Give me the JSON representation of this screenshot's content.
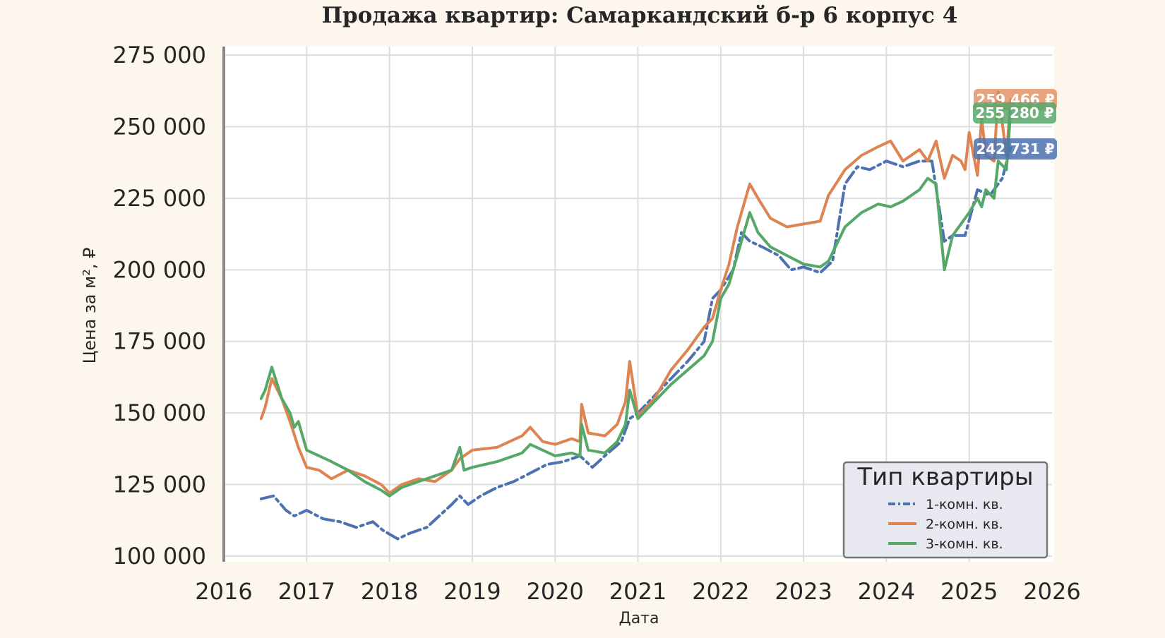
{
  "chart_data": {
    "type": "line",
    "title": "Продажа квартир: Самаркандский б-р 6 корпус 4",
    "xlabel": "Дата",
    "ylabel": "Цена за м², ₽",
    "xlim": [
      2016,
      2026
    ],
    "ylim": [
      98000,
      278000
    ],
    "x_ticks": [
      "2016",
      "2017",
      "2018",
      "2019",
      "2020",
      "2021",
      "2022",
      "2023",
      "2024",
      "2025",
      "2026"
    ],
    "y_ticks": [
      "100 000",
      "125 000",
      "150 000",
      "175 000",
      "200 000",
      "225 000",
      "250 000",
      "275 000"
    ],
    "y_tick_values": [
      100000,
      125000,
      150000,
      175000,
      200000,
      225000,
      250000,
      275000
    ],
    "grid": true,
    "legend": {
      "title": "Тип квартиры",
      "placement": "bottom-right",
      "entries": [
        "1-комн. кв.",
        "2-комн. кв.",
        "3-комн. кв."
      ]
    },
    "series": [
      {
        "name": "1-комн. кв.",
        "color": "#4c72b0",
        "style": "dashdot",
        "end_label": "242 731 ₽",
        "x": [
          2016.45,
          2016.6,
          2016.75,
          2016.85,
          2017.0,
          2017.2,
          2017.4,
          2017.6,
          2017.8,
          2017.92,
          2018.1,
          2018.25,
          2018.45,
          2018.6,
          2018.75,
          2018.85,
          2018.95,
          2019.1,
          2019.3,
          2019.5,
          2019.7,
          2019.9,
          2020.1,
          2020.3,
          2020.45,
          2020.6,
          2020.8,
          2020.9,
          2021.0,
          2021.2,
          2021.4,
          2021.6,
          2021.8,
          2021.9,
          2022.0,
          2022.15,
          2022.25,
          2022.35,
          2022.5,
          2022.7,
          2022.85,
          2023.0,
          2023.2,
          2023.35,
          2023.5,
          2023.65,
          2023.8,
          2024.0,
          2024.2,
          2024.4,
          2024.55,
          2024.7,
          2024.8,
          2024.95,
          2025.1,
          2025.25,
          2025.4,
          2025.5
        ],
        "y": [
          120000,
          121000,
          116000,
          114000,
          116000,
          113000,
          112000,
          110000,
          112000,
          109000,
          106000,
          108000,
          110000,
          114000,
          118000,
          121000,
          118000,
          121000,
          124000,
          126000,
          129000,
          132000,
          133000,
          135000,
          131000,
          135000,
          140000,
          148000,
          150000,
          156000,
          162000,
          168000,
          175000,
          190000,
          193000,
          200000,
          213000,
          210000,
          208000,
          205000,
          200000,
          201000,
          199000,
          203000,
          230000,
          236000,
          235000,
          238000,
          236000,
          238000,
          238000,
          210000,
          212000,
          212000,
          228000,
          226000,
          232000,
          242731
        ]
      },
      {
        "name": "2-комн. кв.",
        "color": "#dd8452",
        "style": "solid",
        "end_label": "259 466 ₽",
        "x": [
          2016.45,
          2016.5,
          2016.58,
          2016.7,
          2016.8,
          2016.9,
          2017.0,
          2017.15,
          2017.3,
          2017.5,
          2017.7,
          2017.9,
          2018.0,
          2018.15,
          2018.35,
          2018.55,
          2018.75,
          2018.85,
          2019.0,
          2019.3,
          2019.6,
          2019.7,
          2019.85,
          2020.0,
          2020.2,
          2020.3,
          2020.32,
          2020.4,
          2020.6,
          2020.75,
          2020.85,
          2020.9,
          2021.0,
          2021.2,
          2021.4,
          2021.6,
          2021.8,
          2021.9,
          2022.0,
          2022.1,
          2022.2,
          2022.35,
          2022.45,
          2022.6,
          2022.8,
          2023.0,
          2023.2,
          2023.3,
          2023.5,
          2023.7,
          2023.9,
          2024.05,
          2024.2,
          2024.4,
          2024.5,
          2024.6,
          2024.7,
          2024.8,
          2024.9,
          2024.95,
          2025.0,
          2025.1,
          2025.15,
          2025.2,
          2025.3,
          2025.35,
          2025.45,
          2025.5
        ],
        "y": [
          148000,
          152000,
          162000,
          155000,
          147000,
          138000,
          131000,
          130000,
          127000,
          130000,
          128000,
          125000,
          122000,
          125000,
          127000,
          126000,
          130000,
          134000,
          137000,
          138000,
          142000,
          145000,
          140000,
          139000,
          141000,
          140000,
          153000,
          143000,
          142000,
          146000,
          154000,
          168000,
          149000,
          155000,
          165000,
          172000,
          180000,
          183000,
          193000,
          202000,
          215000,
          230000,
          225000,
          218000,
          215000,
          216000,
          217000,
          226000,
          235000,
          240000,
          243000,
          245000,
          238000,
          242000,
          238000,
          245000,
          232000,
          240000,
          238000,
          235000,
          248000,
          233000,
          253000,
          240000,
          238000,
          262000,
          240000,
          259466
        ]
      },
      {
        "name": "3-комн. кв.",
        "color": "#55a868",
        "style": "solid",
        "end_label": "255 280 ₽",
        "x": [
          2016.45,
          2016.5,
          2016.58,
          2016.7,
          2016.8,
          2016.85,
          2016.9,
          2017.0,
          2017.15,
          2017.3,
          2017.5,
          2017.7,
          2017.9,
          2018.0,
          2018.15,
          2018.35,
          2018.55,
          2018.75,
          2018.85,
          2018.9,
          2019.0,
          2019.3,
          2019.6,
          2019.7,
          2019.85,
          2020.0,
          2020.2,
          2020.3,
          2020.32,
          2020.4,
          2020.6,
          2020.75,
          2020.85,
          2020.9,
          2021.0,
          2021.2,
          2021.4,
          2021.6,
          2021.8,
          2021.9,
          2022.0,
          2022.1,
          2022.2,
          2022.35,
          2022.45,
          2022.6,
          2022.8,
          2023.0,
          2023.2,
          2023.3,
          2023.5,
          2023.7,
          2023.9,
          2024.05,
          2024.2,
          2024.4,
          2024.5,
          2024.6,
          2024.7,
          2024.8,
          2024.9,
          2025.0,
          2025.1,
          2025.15,
          2025.2,
          2025.3,
          2025.35,
          2025.45,
          2025.5
        ],
        "y": [
          155000,
          158000,
          166000,
          155000,
          150000,
          145000,
          147000,
          137000,
          135000,
          133000,
          130000,
          126000,
          123000,
          121000,
          124000,
          126000,
          128000,
          130000,
          138000,
          130000,
          131000,
          133000,
          136000,
          139000,
          137000,
          135000,
          136000,
          135000,
          146000,
          137000,
          136000,
          140000,
          146000,
          158000,
          148000,
          154000,
          160000,
          165000,
          170000,
          175000,
          190000,
          195000,
          205000,
          220000,
          213000,
          208000,
          205000,
          202000,
          201000,
          203000,
          215000,
          220000,
          223000,
          222000,
          224000,
          228000,
          232000,
          230000,
          200000,
          212000,
          216000,
          220000,
          225000,
          222000,
          228000,
          225000,
          238000,
          235000,
          255280
        ]
      }
    ]
  }
}
